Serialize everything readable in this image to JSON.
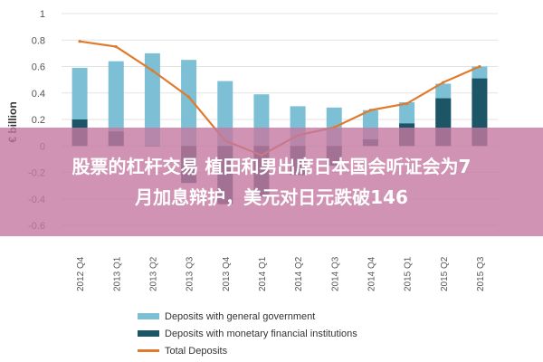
{
  "chart_data": {
    "type": "bar",
    "ylabel": "€ billion",
    "ylim": [
      -0.6,
      1.0
    ],
    "yticks": [
      "1",
      "0.8",
      "0.6",
      "0.4",
      "0.2",
      "0",
      "-0.2",
      "-0.4",
      "-0.6"
    ],
    "categories": [
      "2012 Q4",
      "2013 Q1",
      "2013 Q2",
      "2013 Q3",
      "2013 Q4",
      "2014 Q1",
      "2014 Q2",
      "2014 Q3",
      "2014 Q4",
      "2015 Q1",
      "2015 Q2",
      "2015 Q3"
    ],
    "series": [
      {
        "name": "Deposits with general government",
        "kind": "bar",
        "color": "#7dc0d5",
        "values": [
          0.59,
          0.64,
          0.7,
          0.65,
          0.49,
          0.39,
          0.3,
          0.29,
          0.27,
          0.33,
          0.47,
          0.6
        ]
      },
      {
        "name": "Deposits with monetary financial institutions",
        "kind": "bar",
        "color": "#1c5566",
        "values": [
          0.2,
          0.11,
          0.0,
          -0.28,
          -0.44,
          -0.39,
          -0.22,
          -0.15,
          0.05,
          0.17,
          0.36,
          0.51
        ]
      },
      {
        "name": "Total Deposits",
        "kind": "line",
        "color": "#e07a2e",
        "values": [
          0.79,
          0.75,
          0.57,
          0.37,
          0.04,
          -0.07,
          0.08,
          0.14,
          0.27,
          0.32,
          0.48,
          0.6
        ]
      }
    ],
    "legend_position": "bottom"
  },
  "banner": {
    "line1": "股票的杠杆交易 植田和男出席日本国会听证会为7",
    "line2": "月加息辩护，美元对日元跌破146"
  }
}
